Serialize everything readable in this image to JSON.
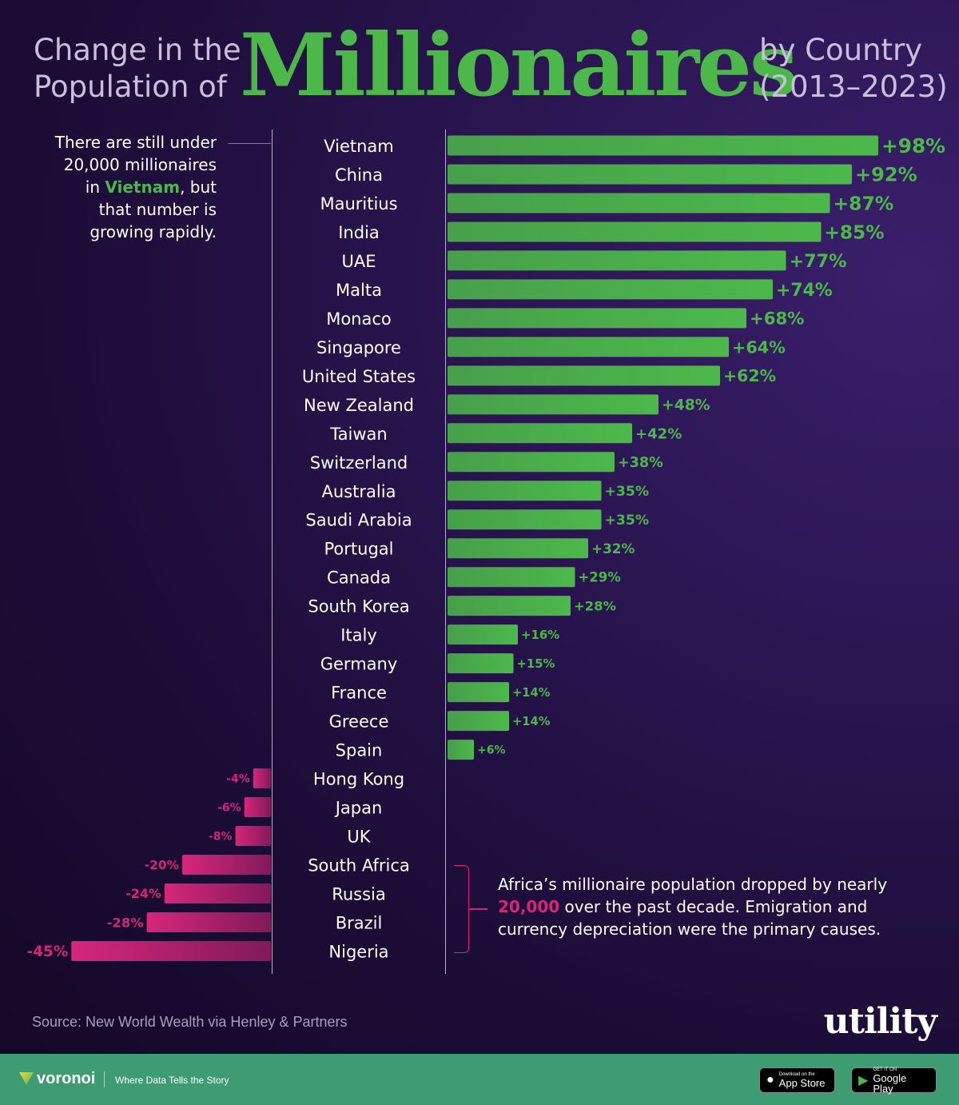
{
  "title": {
    "left_line1": "Change in the",
    "left_line2": "Population of",
    "main": "Millionaires",
    "right_line1": "by Country",
    "right_line2": "(2013–2023)"
  },
  "annotations": {
    "vietnam_pre": "There are still under 20,000 millionaires in ",
    "vietnam_highlight": "Vietnam",
    "vietnam_post": ", but that number is growing rapidly.",
    "africa_pre": "Africa’s millionaire population dropped by nearly ",
    "africa_highlight": "20,000",
    "africa_post": " over the past decade. Emigration and currency depreciation were the primary causes."
  },
  "source": "Source: New World Wealth via Henley & Partners",
  "brand": "utility",
  "footer": {
    "logo": "voronoi",
    "tagline": "Where Data Tells the Story",
    "appstore_small": "Download on the",
    "appstore": "App Store",
    "googleplay_small": "GET IT ON",
    "googleplay": "Google Play"
  },
  "colors": {
    "positive": "#4cb84a",
    "negative": "#d6267b"
  },
  "chart_data": {
    "type": "bar",
    "orientation": "horizontal",
    "unit": "%",
    "categories": [
      "Vietnam",
      "China",
      "Mauritius",
      "India",
      "UAE",
      "Malta",
      "Monaco",
      "Singapore",
      "United States",
      "New Zealand",
      "Taiwan",
      "Switzerland",
      "Australia",
      "Saudi Arabia",
      "Portugal",
      "Canada",
      "South Korea",
      "Italy",
      "Germany",
      "France",
      "Greece",
      "Spain",
      "Hong Kong",
      "Japan",
      "UK",
      "South Africa",
      "Russia",
      "Brazil",
      "Nigeria"
    ],
    "values": [
      98,
      92,
      87,
      85,
      77,
      74,
      68,
      64,
      62,
      48,
      42,
      38,
      35,
      35,
      32,
      29,
      28,
      16,
      15,
      14,
      14,
      6,
      -4,
      -6,
      -8,
      -20,
      -24,
      -28,
      -45
    ],
    "labels": [
      "+98%",
      "+92%",
      "+87%",
      "+85%",
      "+77%",
      "+74%",
      "+68%",
      "+64%",
      "+62%",
      "+48%",
      "+42%",
      "+38%",
      "+35%",
      "+35%",
      "+32%",
      "+29%",
      "+28%",
      "+16%",
      "+15%",
      "+14%",
      "+14%",
      "+6%",
      "-4%",
      "-6%",
      "-8%",
      "-20%",
      "-24%",
      "-28%",
      "-45%"
    ],
    "grid": false,
    "legend": "none"
  }
}
